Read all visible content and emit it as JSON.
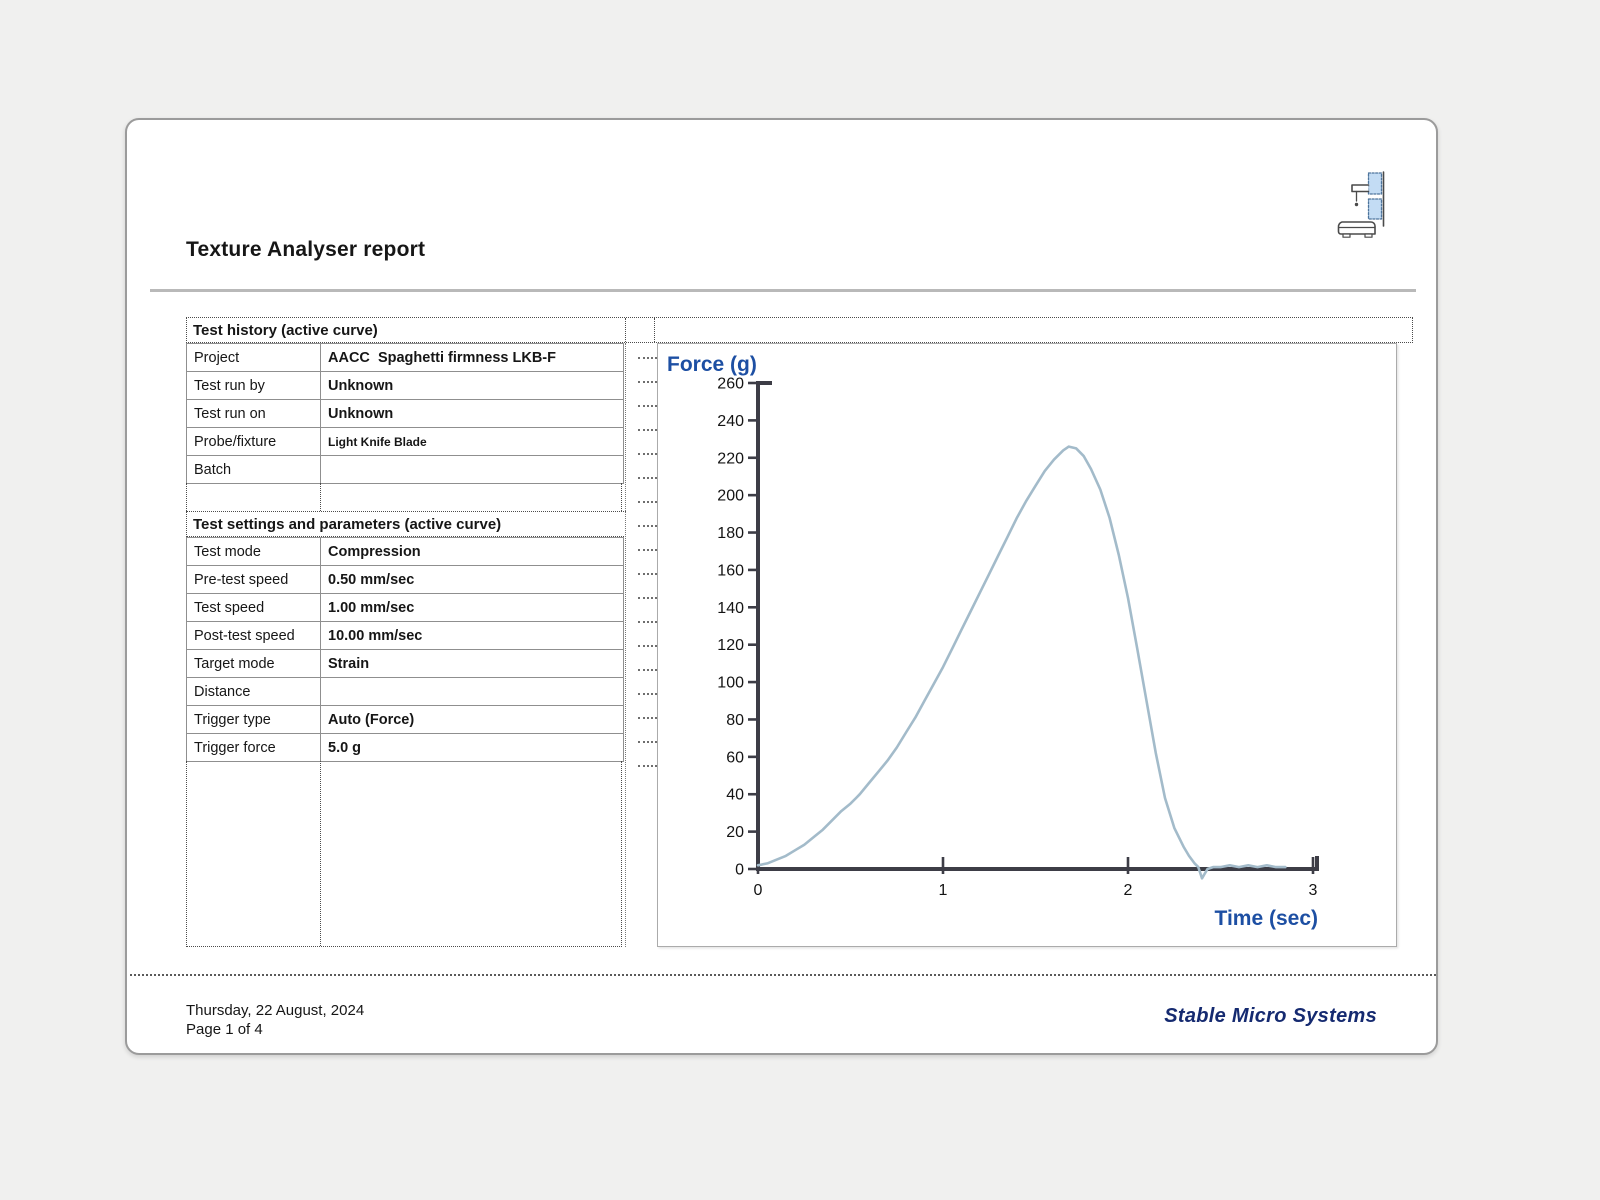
{
  "report": {
    "title": "Texture Analyser report"
  },
  "history": {
    "header": "Test history (active curve)",
    "rows": [
      {
        "label": "Project",
        "value": "AACC  Spaghetti firmness LKB-F"
      },
      {
        "label": "Test run by",
        "value": "Unknown"
      },
      {
        "label": "Test run on",
        "value": "Unknown"
      },
      {
        "label": "Probe/fixture",
        "value": "Light Knife Blade"
      },
      {
        "label": "Batch",
        "value": ""
      }
    ]
  },
  "settings": {
    "header": "Test settings and parameters (active curve)",
    "rows": [
      {
        "label": "Test mode",
        "value": "Compression"
      },
      {
        "label": "Pre-test speed",
        "value": "0.50 mm/sec"
      },
      {
        "label": "Test speed",
        "value": "1.00 mm/sec"
      },
      {
        "label": "Post-test speed",
        "value": "10.00 mm/sec"
      },
      {
        "label": "Target mode",
        "value": "Strain"
      },
      {
        "label": "Distance",
        "value": ""
      },
      {
        "label": "Trigger type",
        "value": "Auto (Force)"
      },
      {
        "label": "Trigger force",
        "value": "5.0 g"
      }
    ]
  },
  "footer": {
    "date": "Thursday, 22 August, 2024",
    "page": "Page 1 of 4",
    "brand": "Stable Micro Systems"
  },
  "colors": {
    "axis_label_blue": "#1d4fa3",
    "curve_blue_gray": "#a3bbca",
    "axis_dark": "#3d3d46",
    "brand_navy": "#152a70"
  },
  "chart_data": {
    "type": "line",
    "ylabel": "Force (g)",
    "xlabel": "Time (sec)",
    "xlim": [
      0,
      3
    ],
    "ylim": [
      0,
      260
    ],
    "x_ticks": [
      0,
      1,
      2,
      3
    ],
    "y_ticks": [
      0,
      20,
      40,
      60,
      80,
      100,
      120,
      140,
      160,
      180,
      200,
      220,
      240,
      260
    ],
    "grid": false,
    "legend": "none",
    "series": [
      {
        "name": "active curve",
        "points": [
          [
            0.0,
            2
          ],
          [
            0.05,
            3
          ],
          [
            0.1,
            5
          ],
          [
            0.15,
            7
          ],
          [
            0.2,
            10
          ],
          [
            0.25,
            13
          ],
          [
            0.3,
            17
          ],
          [
            0.35,
            21
          ],
          [
            0.4,
            26
          ],
          [
            0.45,
            31
          ],
          [
            0.5,
            35
          ],
          [
            0.53,
            38
          ],
          [
            0.55,
            40
          ],
          [
            0.6,
            46
          ],
          [
            0.65,
            52
          ],
          [
            0.7,
            58
          ],
          [
            0.75,
            65
          ],
          [
            0.8,
            73
          ],
          [
            0.85,
            81
          ],
          [
            0.9,
            90
          ],
          [
            0.95,
            99
          ],
          [
            1.0,
            108
          ],
          [
            1.05,
            118
          ],
          [
            1.1,
            128
          ],
          [
            1.15,
            138
          ],
          [
            1.2,
            148
          ],
          [
            1.25,
            158
          ],
          [
            1.3,
            168
          ],
          [
            1.35,
            178
          ],
          [
            1.4,
            188
          ],
          [
            1.45,
            197
          ],
          [
            1.5,
            205
          ],
          [
            1.55,
            213
          ],
          [
            1.6,
            219
          ],
          [
            1.65,
            224
          ],
          [
            1.68,
            226
          ],
          [
            1.72,
            225
          ],
          [
            1.76,
            221
          ],
          [
            1.8,
            214
          ],
          [
            1.85,
            203
          ],
          [
            1.9,
            188
          ],
          [
            1.95,
            168
          ],
          [
            2.0,
            145
          ],
          [
            2.05,
            118
          ],
          [
            2.1,
            90
          ],
          [
            2.15,
            62
          ],
          [
            2.2,
            38
          ],
          [
            2.25,
            22
          ],
          [
            2.3,
            12
          ],
          [
            2.33,
            7
          ],
          [
            2.36,
            3
          ],
          [
            2.38,
            1
          ],
          [
            2.4,
            -5
          ],
          [
            2.43,
            0
          ],
          [
            2.46,
            1
          ],
          [
            2.5,
            1
          ],
          [
            2.55,
            2
          ],
          [
            2.6,
            1
          ],
          [
            2.65,
            2
          ],
          [
            2.7,
            1
          ],
          [
            2.75,
            2
          ],
          [
            2.8,
            1
          ],
          [
            2.85,
            1
          ]
        ],
        "peak": {
          "time_sec": 1.68,
          "force_g": 226
        }
      }
    ]
  }
}
